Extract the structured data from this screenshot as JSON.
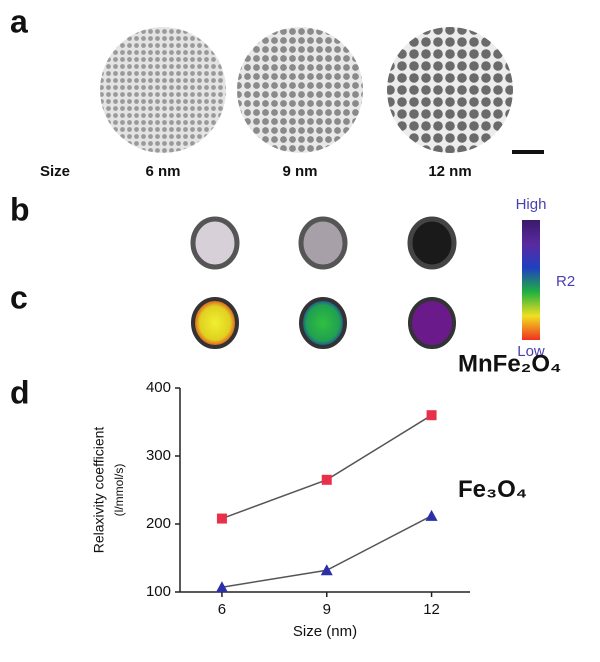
{
  "panel_labels": [
    "a",
    "b",
    "c",
    "d"
  ],
  "size_label": "Size",
  "sizes": [
    "6 nm",
    "9 nm",
    "12 nm"
  ],
  "colorbar": {
    "high": "High",
    "mid": "R2",
    "low": "Low"
  },
  "chart_data": {
    "type": "line",
    "xlabel": "Size (nm)",
    "ylabel": [
      "Relaxivity coefficient",
      "(l/mmol/s)"
    ],
    "x": [
      6,
      9,
      12
    ],
    "xlim": [
      4.8,
      13.1
    ],
    "xticks": [
      6,
      9,
      12
    ],
    "ylim": [
      100,
      400
    ],
    "yticks": [
      100,
      200,
      300,
      400
    ],
    "line_color": "#555555",
    "series": [
      {
        "name": "MnFe₂O₄",
        "color": "#e8304a",
        "marker": "square",
        "values": [
          208,
          265,
          360
        ]
      },
      {
        "name": "Fe₃O₄",
        "color": "#2b2fa8",
        "marker": "triangle",
        "values": [
          107,
          132,
          212
        ]
      }
    ]
  }
}
